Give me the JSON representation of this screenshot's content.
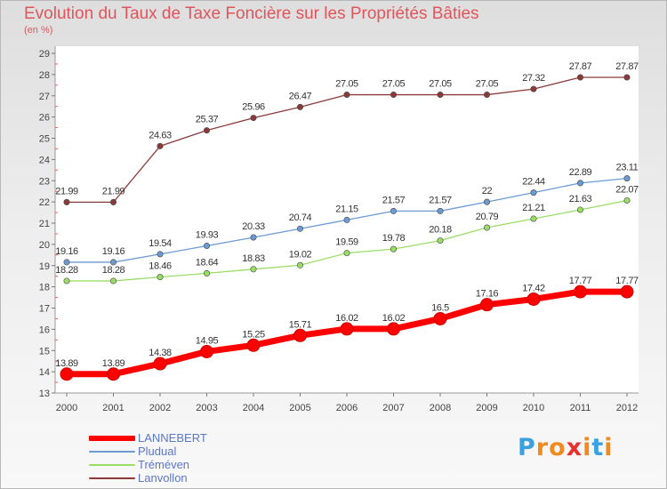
{
  "chart_data": {
    "type": "line",
    "title": "Evolution du Taux de Taxe Foncière sur les Propriétés Bâties",
    "subtitle": "(en %)",
    "ylim": [
      13,
      29
    ],
    "yticks": [
      "13",
      "14",
      "15",
      "16",
      "17",
      "18",
      "19",
      "20",
      "21",
      "22",
      "23",
      "24",
      "25",
      "26",
      "27",
      "28",
      "29"
    ],
    "categories": [
      "2000",
      "2001",
      "2002",
      "2003",
      "2004",
      "2005",
      "2006",
      "2007",
      "2008",
      "2009",
      "2010",
      "2011",
      "2012"
    ],
    "series": [
      {
        "name": "LANNEBERT",
        "color": "#ff0000",
        "values": [
          13.89,
          13.89,
          14.38,
          14.95,
          15.25,
          15.71,
          16.02,
          16.02,
          16.5,
          17.16,
          17.42,
          17.77,
          17.77
        ],
        "labels": [
          "13.89",
          "13.89",
          "14.38",
          "14.95",
          "15.25",
          "15.71",
          "16.02",
          "16.02",
          "16.5",
          "17.16",
          "17.42",
          "17.77",
          "17.77"
        ]
      },
      {
        "name": "Pludual",
        "color": "#6b9bd2",
        "values": [
          19.16,
          19.16,
          19.54,
          19.93,
          20.33,
          20.74,
          21.15,
          21.57,
          21.57,
          22,
          22.44,
          22.89,
          23.11
        ],
        "labels": [
          "19.16",
          "19.16",
          "19.54",
          "19.93",
          "20.33",
          "20.74",
          "21.15",
          "21.57",
          "21.57",
          "22",
          "22.44",
          "22.89",
          "23.11"
        ]
      },
      {
        "name": "Tréméven",
        "color": "#99dd66",
        "values": [
          18.28,
          18.28,
          18.46,
          18.64,
          18.83,
          19.02,
          19.59,
          19.78,
          20.18,
          20.79,
          21.21,
          21.63,
          22.07
        ],
        "labels": [
          "18.28",
          "18.28",
          "18.46",
          "18.64",
          "18.83",
          "19.02",
          "19.59",
          "19.78",
          "20.18",
          "20.79",
          "21.21",
          "21.63",
          "22.07"
        ]
      },
      {
        "name": "Lanvollon",
        "color": "#8b3a3a",
        "values": [
          21.99,
          21.99,
          24.63,
          25.37,
          25.96,
          26.47,
          27.05,
          27.05,
          27.05,
          27.05,
          27.32,
          27.87,
          27.87
        ],
        "labels": [
          "21.99",
          "21.99",
          "24.63",
          "25.37",
          "25.96",
          "26.47",
          "27.05",
          "27.05",
          "27.05",
          "27.05",
          "27.32",
          "27.87",
          "27.87"
        ]
      }
    ],
    "legend_position": "bottom-left",
    "grid": false
  },
  "brand": {
    "text": "Proxiti",
    "colors": [
      "#3aa0e0",
      "#f08a1c",
      "#f08a1c",
      "#e83030",
      "#f08a1c",
      "#3aa0e0",
      "#f08a1c"
    ]
  }
}
